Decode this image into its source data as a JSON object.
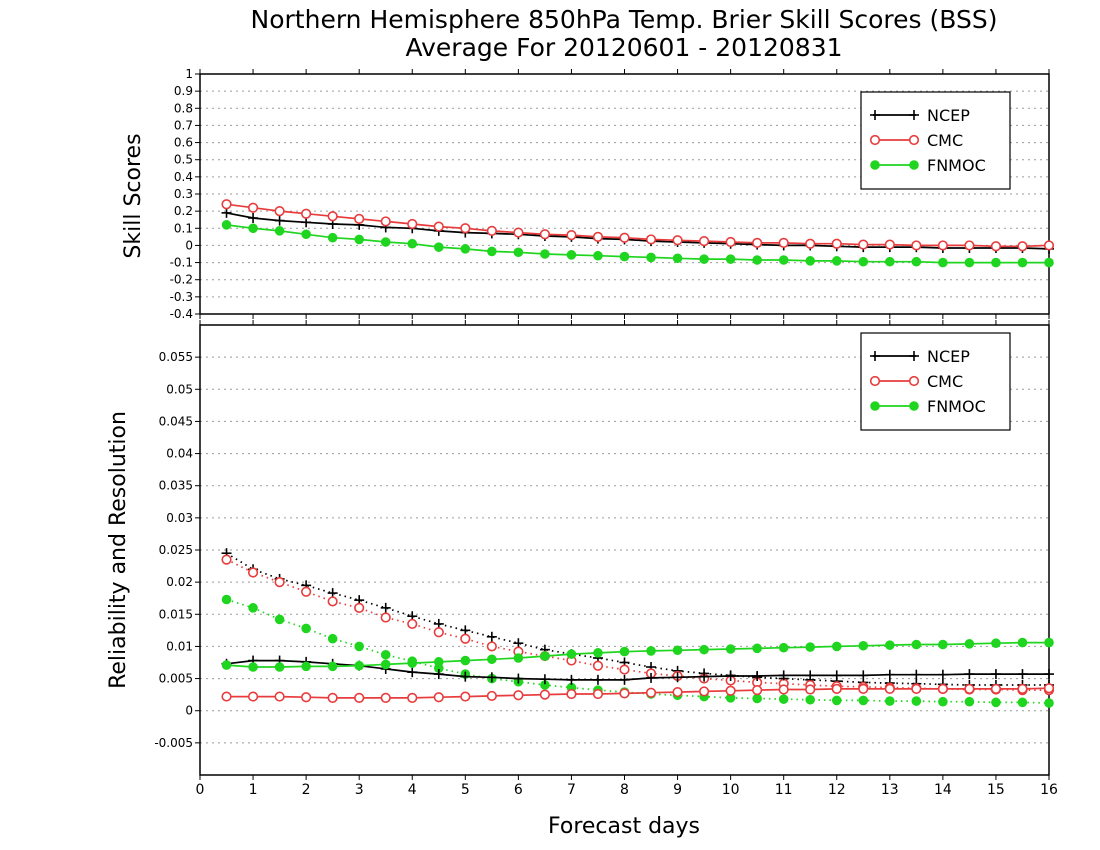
{
  "title_line1": "Northern Hemisphere 850hPa Temp. Brier Skill Scores (BSS)",
  "title_line2": "Average For 20120601 - 20120831",
  "xlabel": "Forecast days",
  "colors": {
    "NCEP": "#000000",
    "CMC": "#e83c3c",
    "FNMOC": "#1fd51f",
    "grid": "#9a9a9a"
  },
  "chart_data": [
    {
      "type": "line",
      "panel": "top",
      "ylabel": "Skill Scores",
      "ylim": [
        -0.4,
        1
      ],
      "xlim": [
        0,
        16
      ],
      "grid": true,
      "legend_position": "top-right",
      "y_ticks": [
        "-0.4",
        "-0.3",
        "-0.2",
        "-0.1",
        "0",
        "0.1",
        "0.2",
        "0.3",
        "0.4",
        "0.5",
        "0.6",
        "0.7",
        "0.8",
        "0.9",
        "1"
      ],
      "x": [
        0.5,
        1,
        1.5,
        2,
        2.5,
        3,
        3.5,
        4,
        4.5,
        5,
        5.5,
        6,
        6.5,
        7,
        7.5,
        8,
        8.5,
        9,
        9.5,
        10,
        10.5,
        11,
        11.5,
        12,
        12.5,
        13,
        13.5,
        14,
        14.5,
        15,
        15.5,
        16
      ],
      "series": [
        {
          "name": "NCEP",
          "marker": "plus",
          "style": "solid",
          "values": [
            0.19,
            0.16,
            0.145,
            0.135,
            0.125,
            0.12,
            0.105,
            0.1,
            0.085,
            0.075,
            0.07,
            0.065,
            0.055,
            0.05,
            0.04,
            0.035,
            0.025,
            0.02,
            0.015,
            0.01,
            0.005,
            0.0,
            0.0,
            -0.005,
            -0.01,
            -0.01,
            -0.01,
            -0.015,
            -0.015,
            -0.015,
            -0.015,
            -0.02
          ]
        },
        {
          "name": "CMC",
          "marker": "open-circle",
          "style": "solid",
          "values": [
            0.24,
            0.22,
            0.2,
            0.185,
            0.17,
            0.155,
            0.14,
            0.125,
            0.11,
            0.1,
            0.085,
            0.075,
            0.065,
            0.06,
            0.05,
            0.045,
            0.035,
            0.03,
            0.025,
            0.02,
            0.015,
            0.015,
            0.01,
            0.01,
            0.005,
            0.005,
            0.0,
            0.0,
            0.0,
            -0.005,
            -0.005,
            0.0
          ]
        },
        {
          "name": "FNMOC",
          "marker": "filled-circle",
          "style": "solid",
          "values": [
            0.12,
            0.1,
            0.085,
            0.065,
            0.045,
            0.035,
            0.02,
            0.01,
            -0.01,
            -0.02,
            -0.035,
            -0.04,
            -0.05,
            -0.055,
            -0.06,
            -0.065,
            -0.07,
            -0.075,
            -0.08,
            -0.08,
            -0.085,
            -0.085,
            -0.09,
            -0.09,
            -0.095,
            -0.095,
            -0.095,
            -0.1,
            -0.1,
            -0.1,
            -0.1,
            -0.1
          ]
        }
      ]
    },
    {
      "type": "line",
      "panel": "bottom",
      "ylabel": "Reliability and Resolution",
      "ylim": [
        -0.01,
        0.06
      ],
      "xlim": [
        0,
        16
      ],
      "grid": true,
      "legend_position": "top-right",
      "y_ticks": [
        "-0.005",
        "0",
        "0.005",
        "0.01",
        "0.015",
        "0.02",
        "0.025",
        "0.03",
        "0.035",
        "0.04",
        "0.045",
        "0.05",
        "0.055"
      ],
      "x_ticks": [
        "0",
        "1",
        "2",
        "3",
        "4",
        "5",
        "6",
        "7",
        "8",
        "9",
        "10",
        "11",
        "12",
        "13",
        "14",
        "15",
        "16"
      ],
      "x": [
        0.5,
        1,
        1.5,
        2,
        2.5,
        3,
        3.5,
        4,
        4.5,
        5,
        5.5,
        6,
        6.5,
        7,
        7.5,
        8,
        8.5,
        9,
        9.5,
        10,
        10.5,
        11,
        11.5,
        12,
        12.5,
        13,
        13.5,
        14,
        14.5,
        15,
        15.5,
        16
      ],
      "series": [
        {
          "name": "NCEP",
          "marker": "plus",
          "style": "dotted",
          "values": [
            0.0245,
            0.022,
            0.0205,
            0.0195,
            0.0183,
            0.0172,
            0.016,
            0.0147,
            0.0135,
            0.0125,
            0.0115,
            0.0105,
            0.0095,
            0.0088,
            0.0082,
            0.0075,
            0.0068,
            0.0062,
            0.0058,
            0.0055,
            0.0052,
            0.005,
            0.0048,
            0.0046,
            0.0044,
            0.0043,
            0.0042,
            0.0041,
            0.004,
            0.004,
            0.004,
            0.004
          ]
        },
        {
          "name": "CMC",
          "marker": "open-circle",
          "style": "dotted",
          "values": [
            0.0235,
            0.0215,
            0.02,
            0.0185,
            0.017,
            0.016,
            0.0145,
            0.0135,
            0.0122,
            0.0112,
            0.01,
            0.0092,
            0.0085,
            0.0078,
            0.007,
            0.0064,
            0.0058,
            0.0054,
            0.005,
            0.0047,
            0.0044,
            0.0042,
            0.004,
            0.0038,
            0.0037,
            0.0036,
            0.0035,
            0.0034,
            0.0033,
            0.0033,
            0.0032,
            0.0032
          ]
        },
        {
          "name": "FNMOC",
          "marker": "filled-circle",
          "style": "dotted",
          "values": [
            0.0173,
            0.016,
            0.0142,
            0.0128,
            0.0112,
            0.01,
            0.0087,
            0.0077,
            0.0066,
            0.0057,
            0.005,
            0.0045,
            0.004,
            0.0036,
            0.0032,
            0.0029,
            0.0026,
            0.0024,
            0.0022,
            0.002,
            0.0019,
            0.0018,
            0.0017,
            0.0016,
            0.0016,
            0.0015,
            0.0015,
            0.0014,
            0.0014,
            0.0013,
            0.0013,
            0.0012
          ]
        },
        {
          "name": "NCEP",
          "marker": "plus",
          "style": "solid",
          "values": [
            0.0073,
            0.0078,
            0.0078,
            0.0076,
            0.0073,
            0.007,
            0.0065,
            0.006,
            0.0057,
            0.0053,
            0.0052,
            0.005,
            0.0049,
            0.0048,
            0.0048,
            0.0048,
            0.0051,
            0.0052,
            0.0053,
            0.0054,
            0.0054,
            0.0055,
            0.0055,
            0.0055,
            0.0055,
            0.0056,
            0.0056,
            0.0056,
            0.0057,
            0.0057,
            0.0057,
            0.0057
          ]
        },
        {
          "name": "CMC",
          "marker": "open-circle",
          "style": "solid",
          "values": [
            0.0022,
            0.0022,
            0.0022,
            0.0021,
            0.002,
            0.002,
            0.002,
            0.002,
            0.0021,
            0.0022,
            0.0023,
            0.0024,
            0.0025,
            0.0026,
            0.0026,
            0.0027,
            0.0028,
            0.0029,
            0.003,
            0.0031,
            0.0032,
            0.0033,
            0.0033,
            0.0034,
            0.0034,
            0.0034,
            0.0034,
            0.0034,
            0.0034,
            0.0034,
            0.0034,
            0.0035
          ]
        },
        {
          "name": "FNMOC",
          "marker": "filled-circle",
          "style": "solid",
          "values": [
            0.0071,
            0.0068,
            0.0068,
            0.0069,
            0.0069,
            0.007,
            0.0072,
            0.0074,
            0.0076,
            0.0078,
            0.008,
            0.0082,
            0.0085,
            0.0088,
            0.009,
            0.0092,
            0.0093,
            0.0094,
            0.0095,
            0.0096,
            0.0097,
            0.0098,
            0.0099,
            0.01,
            0.0101,
            0.0102,
            0.0103,
            0.0103,
            0.0104,
            0.0105,
            0.0106,
            0.0106
          ]
        }
      ]
    }
  ],
  "legends": {
    "top": [
      {
        "name": "NCEP",
        "marker": "plus"
      },
      {
        "name": "CMC",
        "marker": "open-circle"
      },
      {
        "name": "FNMOC",
        "marker": "filled-circle"
      }
    ],
    "bottom": [
      {
        "name": "NCEP",
        "marker": "plus"
      },
      {
        "name": "CMC",
        "marker": "open-circle"
      },
      {
        "name": "FNMOC",
        "marker": "filled-circle"
      }
    ]
  }
}
